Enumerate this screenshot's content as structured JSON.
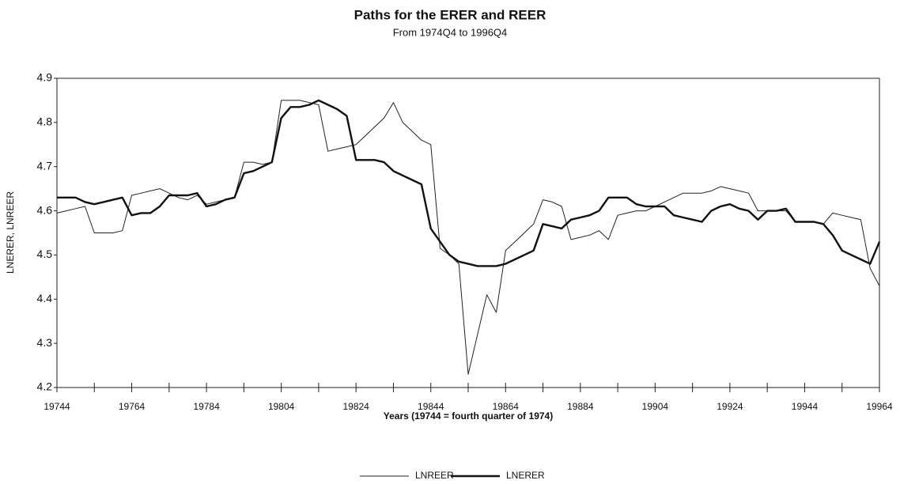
{
  "chart_data": {
    "type": "line",
    "title": "Paths for the ERER and REER",
    "subtitle": "From 1974Q4 to 1996Q4",
    "xlabel": "Years (19744 = fourth quarter of 1974)",
    "ylabel": "LNERER, LNREER",
    "categories": [
      "19744",
      null,
      null,
      null,
      null,
      null,
      null,
      null,
      "19764",
      null,
      null,
      null,
      null,
      null,
      null,
      null,
      "19784",
      null,
      null,
      null,
      null,
      null,
      null,
      null,
      "19804",
      null,
      null,
      null,
      null,
      null,
      null,
      null,
      "19824",
      null,
      null,
      null,
      null,
      null,
      null,
      null,
      "19844",
      null,
      null,
      null,
      null,
      null,
      null,
      null,
      "19864",
      null,
      null,
      null,
      null,
      null,
      null,
      null,
      "19884",
      null,
      null,
      null,
      null,
      null,
      null,
      null,
      "19904",
      null,
      null,
      null,
      null,
      null,
      null,
      null,
      "19924",
      null,
      null,
      null,
      null,
      null,
      null,
      null,
      "19944",
      null,
      null,
      null,
      null,
      null,
      null,
      null,
      "19964"
    ],
    "series": [
      {
        "name": "LNREER",
        "color": "#222222",
        "values": [
          4.595,
          4.6,
          4.605,
          4.61,
          4.55,
          4.55,
          4.55,
          4.555,
          4.635,
          4.64,
          4.645,
          4.65,
          4.64,
          4.63,
          4.625,
          4.635,
          4.615,
          4.62,
          4.625,
          4.63,
          4.71,
          4.71,
          4.705,
          4.71,
          4.85,
          4.85,
          4.85,
          4.845,
          4.84,
          4.735,
          4.74,
          4.745,
          4.75,
          4.77,
          4.79,
          4.81,
          4.845,
          4.8,
          4.78,
          4.76,
          4.75,
          4.515,
          4.5,
          4.48,
          4.23,
          4.32,
          4.41,
          4.37,
          4.51,
          4.53,
          4.55,
          4.57,
          4.625,
          4.62,
          4.61,
          4.535,
          4.54,
          4.545,
          4.555,
          4.535,
          4.59,
          4.595,
          4.6,
          4.6,
          4.61,
          4.62,
          4.63,
          4.64,
          4.64,
          4.64,
          4.645,
          4.655,
          4.65,
          4.645,
          4.64,
          4.6,
          4.6,
          4.6,
          4.6,
          4.575,
          4.575,
          4.575,
          4.57,
          4.595,
          4.59,
          4.585,
          4.58,
          4.47,
          4.43
        ]
      },
      {
        "name": "LNERER",
        "color": "#111111",
        "values": [
          4.63,
          4.63,
          4.63,
          4.62,
          4.615,
          4.62,
          4.625,
          4.63,
          4.59,
          4.595,
          4.595,
          4.61,
          4.635,
          4.635,
          4.635,
          4.64,
          4.61,
          4.615,
          4.625,
          4.63,
          4.685,
          4.69,
          4.7,
          4.71,
          4.81,
          4.835,
          4.835,
          4.84,
          4.85,
          4.84,
          4.83,
          4.815,
          4.715,
          4.715,
          4.715,
          4.71,
          4.69,
          4.68,
          4.67,
          4.66,
          4.56,
          4.53,
          4.5,
          4.485,
          4.48,
          4.475,
          4.475,
          4.475,
          4.48,
          4.49,
          4.5,
          4.51,
          4.57,
          4.565,
          4.56,
          4.58,
          4.585,
          4.59,
          4.6,
          4.63,
          4.63,
          4.63,
          4.615,
          4.61,
          4.61,
          4.61,
          4.59,
          4.585,
          4.58,
          4.575,
          4.6,
          4.61,
          4.615,
          4.605,
          4.6,
          4.58,
          4.6,
          4.6,
          4.605,
          4.575,
          4.575,
          4.575,
          4.57,
          4.545,
          4.51,
          4.5,
          4.49,
          4.48,
          4.53
        ]
      }
    ],
    "ylim": [
      4.2,
      4.9
    ],
    "yticks": [
      4.2,
      4.3,
      4.4,
      4.5,
      4.6,
      4.7,
      4.8,
      4.9
    ],
    "grid": false,
    "legend": "bottom"
  }
}
